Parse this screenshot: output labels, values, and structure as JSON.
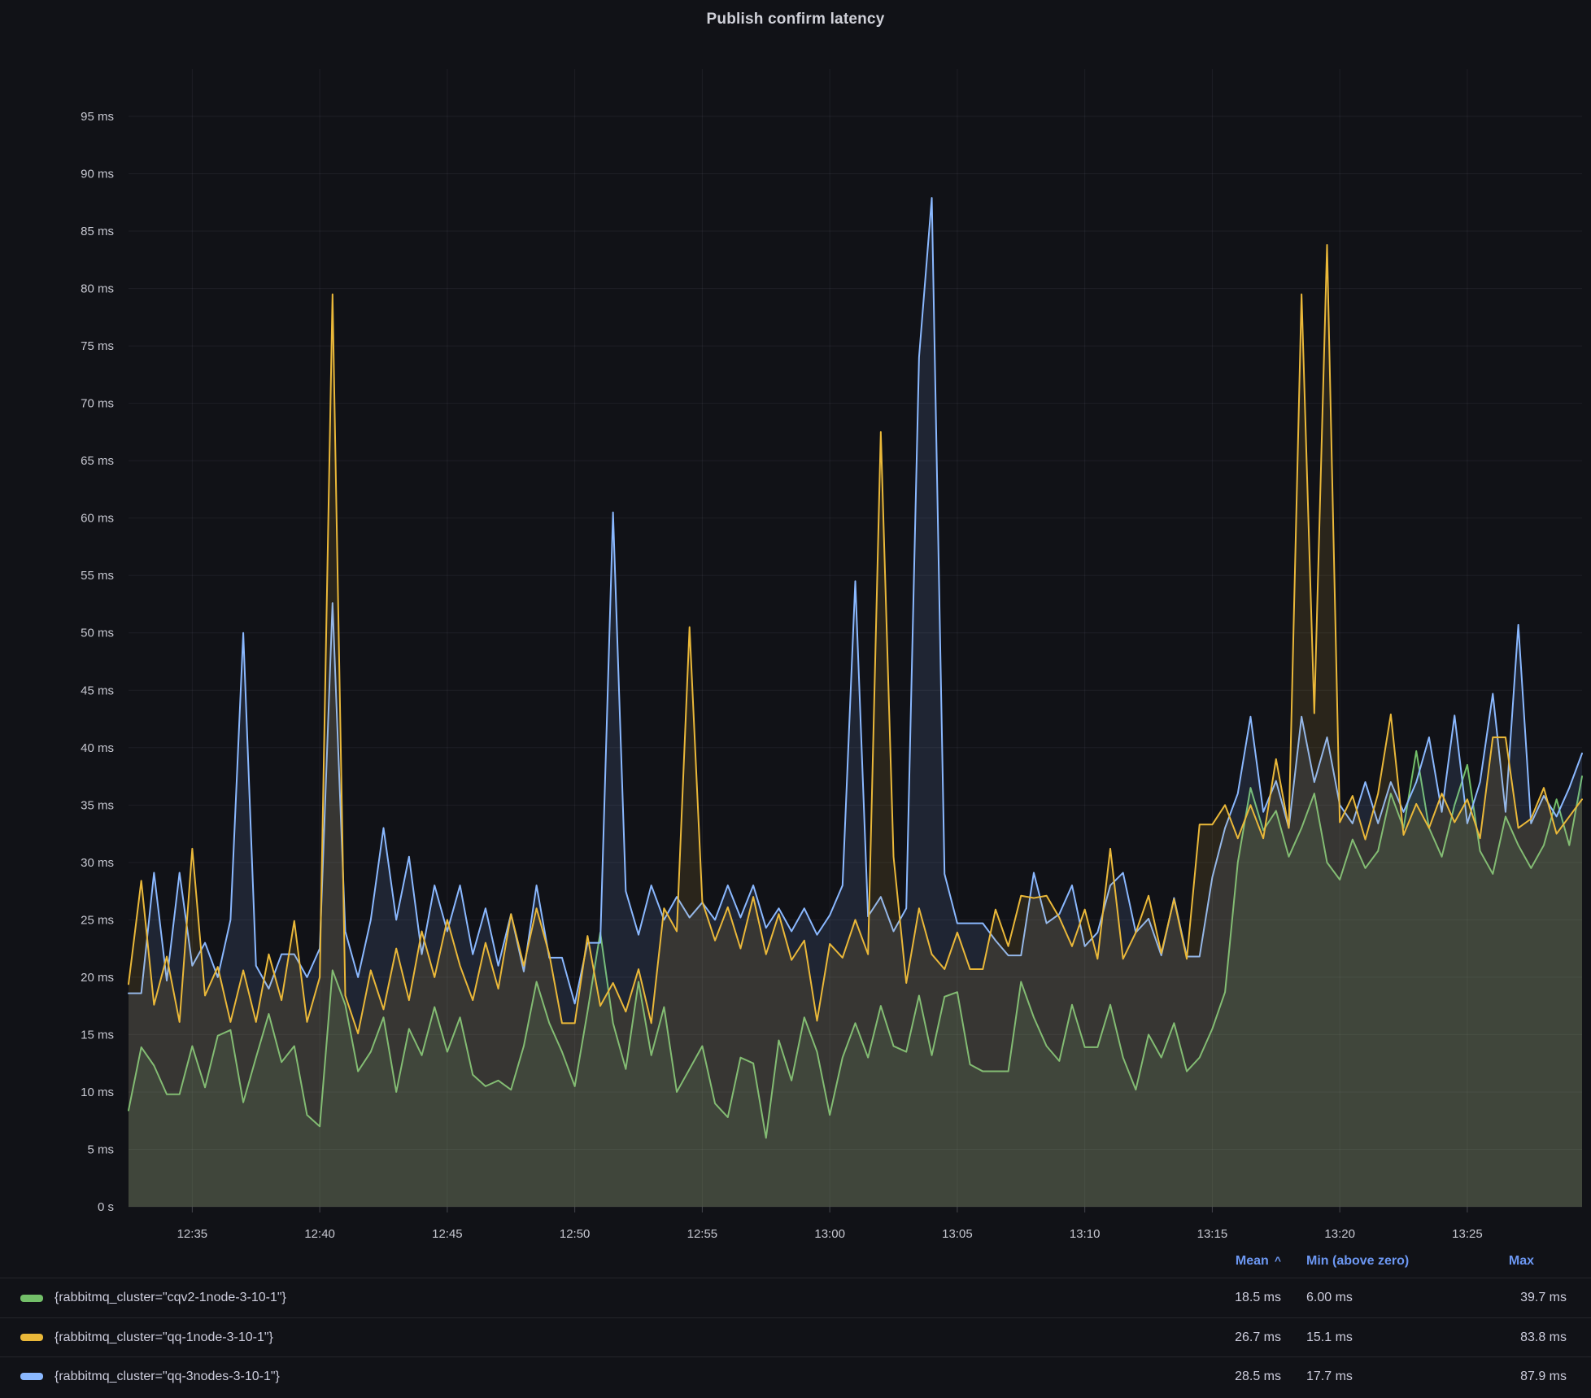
{
  "title": "Publish confirm latency",
  "legend": {
    "mean_label": "Mean",
    "sort_indicator": "^",
    "min_label": "Min (above zero)",
    "max_label": "Max",
    "header_color": "#6C97F2"
  },
  "chart_data": {
    "type": "line",
    "title": "Publish confirm latency",
    "unit": "ms",
    "x_start": "12:32:30",
    "x_interval_seconds": 30,
    "x_tick_labels": [
      "12:35",
      "12:40",
      "12:45",
      "12:50",
      "12:55",
      "13:00",
      "13:05",
      "13:10",
      "13:15",
      "13:20",
      "13:25"
    ],
    "y_tick_labels": [
      "0 s",
      "5 ms",
      "10 ms",
      "15 ms",
      "20 ms",
      "25 ms",
      "30 ms",
      "35 ms",
      "40 ms",
      "45 ms",
      "50 ms",
      "55 ms",
      "60 ms",
      "65 ms",
      "70 ms",
      "75 ms",
      "80 ms",
      "85 ms",
      "90 ms",
      "95 ms"
    ],
    "ylim": [
      0,
      99
    ],
    "grid": true,
    "legend_position": "bottom-table",
    "draw_order": [
      0,
      2,
      1
    ],
    "series": [
      {
        "label": "{rabbitmq_cluster=\"cqv2-1node-3-10-1\"}",
        "color": "#73BF69",
        "stats": {
          "mean": "18.5 ms",
          "min": "6.00 ms",
          "max": "39.7 ms"
        },
        "values": [
          8.4,
          13.9,
          12.3,
          9.8,
          9.8,
          14,
          10.4,
          14.9,
          15.4,
          9.1,
          13,
          16.8,
          12.6,
          14,
          8,
          7,
          20.6,
          17.6,
          11.8,
          13.5,
          16.5,
          10,
          15.5,
          13.2,
          17.4,
          13.5,
          16.5,
          11.5,
          10.5,
          11,
          10.2,
          14,
          19.6,
          16,
          13.5,
          10.5,
          17,
          23.9,
          16,
          12,
          19.6,
          13.2,
          17.4,
          10,
          12,
          14,
          9,
          7.8,
          13,
          12.5,
          6,
          14.5,
          11,
          16.5,
          13.5,
          8,
          13,
          16,
          13,
          17.5,
          14,
          13.5,
          18.4,
          13.2,
          18.3,
          18.7,
          12.4,
          11.8,
          11.8,
          11.8,
          19.6,
          16.5,
          14,
          12.7,
          17.6,
          13.9,
          13.9,
          17.6,
          13,
          10.2,
          15,
          13,
          16,
          11.8,
          13,
          15.5,
          18.7,
          30,
          36.5,
          32.8,
          34.5,
          30.5,
          33,
          36,
          30,
          28.5,
          32,
          29.5,
          31,
          36,
          33,
          39.7,
          33,
          30.5,
          35,
          38.5,
          31,
          29,
          34,
          31.5,
          29.5,
          31.5,
          35.5,
          31.5,
          37.5
        ]
      },
      {
        "label": "{rabbitmq_cluster=\"qq-1node-3-10-1\"}",
        "color": "#EAB839",
        "stats": {
          "mean": "26.7 ms",
          "min": "15.1 ms",
          "max": "83.8 ms"
        },
        "values": [
          19.4,
          28.4,
          17.6,
          21.8,
          16.1,
          31.2,
          18.4,
          20.9,
          16.1,
          20.6,
          16.1,
          22,
          18,
          24.9,
          16.1,
          20,
          79.5,
          18.4,
          15.1,
          20.6,
          17.2,
          22.5,
          18,
          24,
          20,
          25,
          21,
          18,
          23,
          19,
          25.5,
          21,
          26,
          22,
          16,
          16,
          23.6,
          17.5,
          19.5,
          17,
          20.7,
          16,
          26,
          24,
          50.5,
          26.6,
          23.2,
          26.1,
          22.5,
          27,
          22,
          25.5,
          21.5,
          23.2,
          16.2,
          22.9,
          21.7,
          25,
          22,
          67.5,
          30.5,
          19.5,
          26,
          22,
          20.7,
          23.9,
          20.7,
          20.7,
          25.9,
          22.7,
          27.1,
          26.9,
          27.1,
          25.2,
          22.7,
          25.9,
          21.6,
          31.2,
          21.6,
          23.9,
          27.1,
          22.1,
          26.8,
          21.6,
          33.3,
          33.3,
          35,
          32.1,
          35,
          32.1,
          39,
          33,
          79.5,
          43,
          83.8,
          33.5,
          35.8,
          32,
          36,
          42.9,
          32.4,
          35.1,
          33,
          36,
          33.5,
          35.5,
          32.1,
          40.9,
          40.9,
          33,
          33.8,
          36.5,
          32.5,
          34,
          35.5
        ]
      },
      {
        "label": "{rabbitmq_cluster=\"qq-3nodes-3-10-1\"}",
        "color": "#8AB8FF",
        "stats": {
          "mean": "28.5 ms",
          "min": "17.7 ms",
          "max": "87.9 ms"
        },
        "values": [
          18.6,
          18.6,
          29.1,
          19.7,
          29.1,
          21,
          23,
          20,
          25,
          50,
          21,
          19,
          22,
          22,
          20,
          22.5,
          52.6,
          24,
          20,
          25,
          33,
          25,
          30.5,
          22,
          28,
          24,
          28,
          22,
          26,
          21,
          25.5,
          20.5,
          28,
          21.7,
          21.7,
          17.7,
          23,
          23,
          60.5,
          27.5,
          23.7,
          28,
          25,
          27,
          25.2,
          26.5,
          25,
          28,
          25.2,
          28,
          24.3,
          26,
          24,
          26,
          23.7,
          25.4,
          28,
          54.5,
          25.3,
          27,
          24,
          26,
          74,
          87.9,
          29,
          24.7,
          24.7,
          24.7,
          23.2,
          21.9,
          21.9,
          29.1,
          24.7,
          25.5,
          28,
          22.7,
          23.9,
          28,
          29.1,
          23.9,
          25.1,
          21.9,
          26.9,
          21.8,
          21.8,
          28.7,
          33,
          36,
          42.7,
          34.4,
          37.1,
          33,
          42.7,
          37,
          40.9,
          35,
          33.4,
          37,
          33.4,
          37,
          34.4,
          37,
          40.9,
          34.4,
          42.8,
          33.4,
          37,
          44.7,
          34.4,
          50.7,
          33.4,
          35.8,
          34,
          36.5,
          39.5
        ]
      }
    ]
  }
}
